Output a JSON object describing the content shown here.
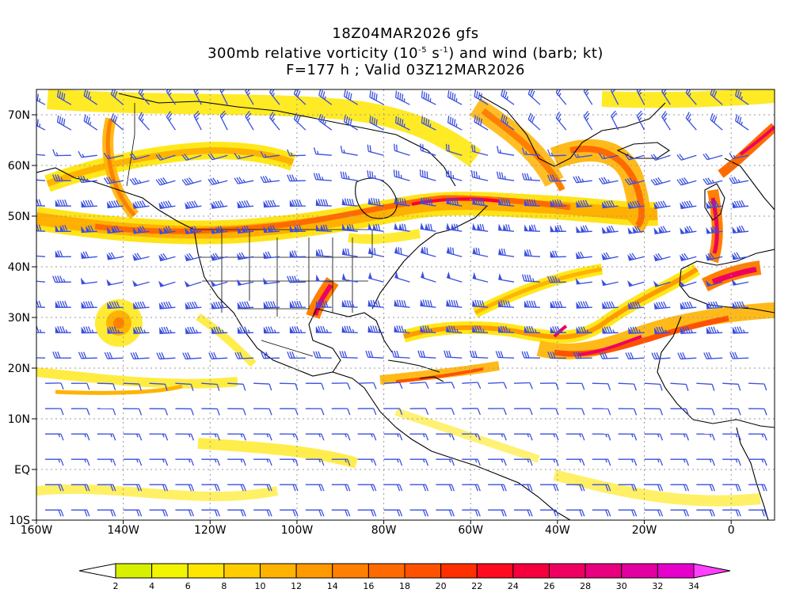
{
  "title": {
    "line1": "18Z04MAR2026 gfs",
    "line2_pre": "300mb relative vorticity (10",
    "line2_exp1": "-5",
    "line2_mid": " s",
    "line2_exp2": "-1",
    "line2_post": ") and wind (barb; kt)",
    "line3": "F=177 h ; Valid 03Z12MAR2026"
  },
  "map": {
    "lon_range": [
      -160,
      10
    ],
    "lat_range": [
      -10,
      75
    ],
    "lat_ticks": [
      {
        "value": 70,
        "label": "70N"
      },
      {
        "value": 60,
        "label": "60N"
      },
      {
        "value": 50,
        "label": "50N"
      },
      {
        "value": 40,
        "label": "40N"
      },
      {
        "value": 30,
        "label": "30N"
      },
      {
        "value": 20,
        "label": "20N"
      },
      {
        "value": 10,
        "label": "10N"
      },
      {
        "value": 0,
        "label": "EQ"
      },
      {
        "value": -10,
        "label": "10S"
      }
    ],
    "lon_ticks": [
      {
        "value": -160,
        "label": "160W"
      },
      {
        "value": -140,
        "label": "140W"
      },
      {
        "value": -120,
        "label": "120W"
      },
      {
        "value": -100,
        "label": "100W"
      },
      {
        "value": -80,
        "label": "80W"
      },
      {
        "value": -60,
        "label": "60W"
      },
      {
        "value": -40,
        "label": "40W"
      },
      {
        "value": -20,
        "label": "20W"
      },
      {
        "value": 0,
        "label": "0"
      }
    ],
    "barb_color": "#3a4fe0",
    "coast_color": "#000000"
  },
  "colorbar": {
    "labels": [
      "2",
      "4",
      "6",
      "8",
      "10",
      "12",
      "14",
      "16",
      "18",
      "20",
      "22",
      "24",
      "26",
      "28",
      "30",
      "32",
      "34"
    ],
    "colors": [
      "#d7f000",
      "#f2f500",
      "#ffe600",
      "#ffcc00",
      "#ffb300",
      "#ff9a00",
      "#ff8000",
      "#ff6a00",
      "#ff5200",
      "#ff2f00",
      "#ff0a1e",
      "#f5003c",
      "#ee0060",
      "#e8007e",
      "#e200a0",
      "#e600cc",
      "#f000f0",
      "#ff40ff"
    ]
  }
}
